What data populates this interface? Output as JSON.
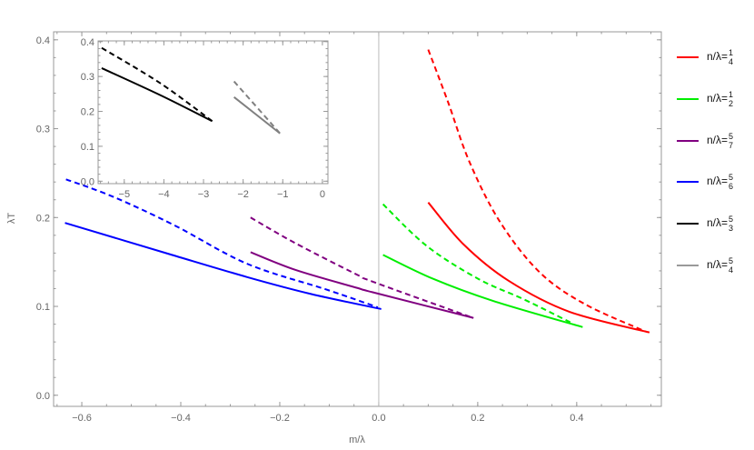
{
  "chart_data": [
    {
      "type": "line",
      "title": "",
      "xlabel": "m/λ",
      "ylabel": "λT",
      "xlim": [
        -0.657,
        0.571
      ],
      "ylim": [
        -0.0125,
        0.409
      ],
      "xticks": [
        "-0.6",
        "-0.4",
        "-0.2",
        "0.0",
        "0.2",
        "0.4"
      ],
      "xtick_values": [
        -0.6,
        -0.4,
        -0.2,
        0.0,
        0.2,
        0.4
      ],
      "yticks": [
        "0.0",
        "0.1",
        "0.2",
        "0.3",
        "0.4"
      ],
      "ytick_values": [
        0.0,
        0.1,
        0.2,
        0.3,
        0.4
      ],
      "grid": false,
      "vertical_reference_line_at_x": 0,
      "legend_position": "right",
      "series": [
        {
          "name": "n/λ=1/4",
          "color": "#ff0000",
          "style": "solid",
          "x": [
            0.1,
            0.171,
            0.262,
            0.385,
            0.547
          ],
          "y": [
            0.217,
            0.17,
            0.129,
            0.094,
            0.0707
          ]
        },
        {
          "name": "n/λ=1/4",
          "color": "#ff0000",
          "style": "dashed",
          "x": [
            0.1,
            0.14,
            0.183,
            0.244,
            0.324,
            0.415,
            0.538
          ],
          "y": [
            0.389,
            0.33,
            0.263,
            0.196,
            0.139,
            0.103,
            0.072
          ]
        },
        {
          "name": "n/λ=1/2",
          "color": "#00ee00",
          "style": "solid",
          "x": [
            0.0086,
            0.11,
            0.232,
            0.412
          ],
          "y": [
            0.158,
            0.131,
            0.106,
            0.0767
          ]
        },
        {
          "name": "n/λ=1/2",
          "color": "#00ee00",
          "style": "dashed",
          "x": [
            0.0086,
            0.097,
            0.201,
            0.293,
            0.391
          ],
          "y": [
            0.215,
            0.168,
            0.131,
            0.108,
            0.081
          ]
        },
        {
          "name": "n/λ=5/7",
          "color": "#800080",
          "style": "solid",
          "x": [
            -0.259,
            -0.168,
            -0.045,
            -0.013,
            0.189
          ],
          "y": [
            0.161,
            0.141,
            0.121,
            0.116,
            0.0874
          ]
        },
        {
          "name": "n/λ=5/7",
          "color": "#800080",
          "style": "dashed",
          "x": [
            -0.259,
            -0.168,
            -0.045,
            -0.013,
            0.171,
            0.189
          ],
          "y": [
            0.2,
            0.171,
            0.136,
            0.128,
            0.091,
            0.0874
          ]
        },
        {
          "name": "n/λ=5/6",
          "color": "#0000ff",
          "style": "solid",
          "x": [
            -0.634,
            -0.424,
            -0.266,
            -0.137,
            0.005
          ],
          "y": [
            0.194,
            0.159,
            0.133,
            0.114,
            0.097
          ]
        },
        {
          "name": "n/λ=5/6",
          "color": "#0000ff",
          "style": "dashed",
          "x": [
            -0.632,
            -0.535,
            -0.412,
            -0.266,
            -0.106,
            -0.002
          ],
          "y": [
            0.243,
            0.223,
            0.191,
            0.148,
            0.119,
            0.099
          ]
        }
      ]
    },
    {
      "type": "line",
      "title": "",
      "placement": "inset",
      "xlim": [
        -5.66,
        0.14
      ],
      "ylim": [
        -0.007,
        0.402
      ],
      "xticks": [
        "-5",
        "-4",
        "-3",
        "-2",
        "-1",
        "0"
      ],
      "xtick_values": [
        -5,
        -4,
        -3,
        -2,
        -1,
        0
      ],
      "yticks": [
        "0.0",
        "0.1",
        "0.2",
        "0.3",
        "0.4"
      ],
      "ytick_values": [
        0.0,
        0.1,
        0.2,
        0.3,
        0.4
      ],
      "grid": false,
      "series": [
        {
          "name": "n/λ=5/3",
          "color": "#000000",
          "style": "solid",
          "x": [
            -5.57,
            -4.08,
            -2.78
          ],
          "y": [
            0.324,
            0.246,
            0.172
          ]
        },
        {
          "name": "n/λ=5/3",
          "color": "#000000",
          "style": "dashed",
          "x": [
            -5.57,
            -4.08,
            -2.78
          ],
          "y": [
            0.382,
            0.28,
            0.172
          ]
        },
        {
          "name": "n/λ=5/4",
          "color": "#808080",
          "style": "solid",
          "x": [
            -2.23,
            -1.07
          ],
          "y": [
            0.241,
            0.137
          ]
        },
        {
          "name": "n/λ=5/4",
          "color": "#808080",
          "style": "dashed",
          "x": [
            -2.23,
            -1.07
          ],
          "y": [
            0.286,
            0.137
          ]
        }
      ]
    }
  ],
  "legend": [
    {
      "prefix": "n/λ=",
      "num": "1",
      "den": "4",
      "color": "#ff0000"
    },
    {
      "prefix": "n/λ=",
      "num": "1",
      "den": "2",
      "color": "#00ee00"
    },
    {
      "prefix": "n/λ=",
      "num": "5",
      "den": "7",
      "color": "#800080"
    },
    {
      "prefix": "n/λ=",
      "num": "5",
      "den": "6",
      "color": "#0000ff"
    },
    {
      "prefix": "n/λ=",
      "num": "5",
      "den": "3",
      "color": "#000000"
    },
    {
      "prefix": "n/λ=",
      "num": "5",
      "den": "4",
      "color": "#999999"
    }
  ]
}
